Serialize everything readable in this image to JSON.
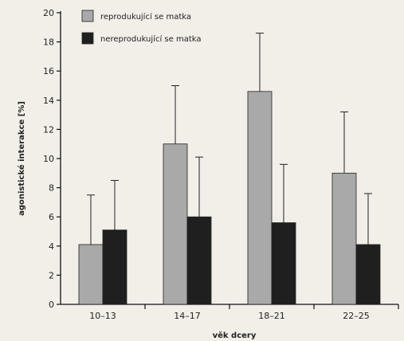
{
  "chart_data": {
    "type": "bar",
    "xlabel": "věk dcery",
    "ylabel": "agonistické interakce [%]",
    "categories": [
      "10–13",
      "14–17",
      "18–21",
      "22–25"
    ],
    "ylim": [
      0,
      20
    ],
    "yticks": [
      0,
      2,
      4,
      6,
      8,
      10,
      12,
      14,
      16,
      18,
      20
    ],
    "legend_position": "top-left",
    "grid": false,
    "error_bars": true,
    "series": [
      {
        "name": "reprodukující se matka",
        "color": "#a9a9a9",
        "values": [
          4.1,
          11.0,
          14.6,
          9.0
        ],
        "error_upper": [
          7.5,
          15.0,
          18.6,
          13.2
        ]
      },
      {
        "name": "nereprodukující se matka",
        "color": "#1f1f1f",
        "values": [
          5.1,
          6.0,
          5.6,
          4.1
        ],
        "error_upper": [
          8.5,
          10.1,
          9.6,
          7.6
        ]
      }
    ]
  }
}
